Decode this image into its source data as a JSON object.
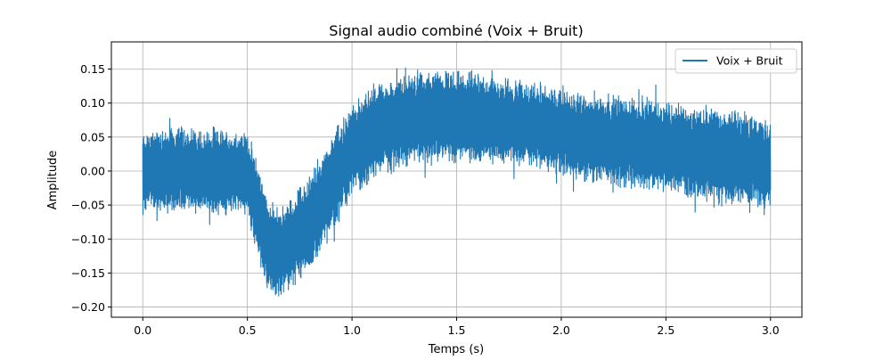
{
  "chart_data": {
    "type": "line",
    "title": "Signal audio combiné (Voix + Bruit)",
    "xlabel": "Temps (s)",
    "ylabel": "Amplitude",
    "xlim": [
      -0.15,
      3.15
    ],
    "ylim": [
      -0.215,
      0.19
    ],
    "xticks": [
      0.0,
      0.5,
      1.0,
      1.5,
      2.0,
      2.5,
      3.0
    ],
    "xtick_labels": [
      "0.0",
      "0.5",
      "1.0",
      "1.5",
      "2.0",
      "2.5",
      "3.0"
    ],
    "yticks": [
      -0.2,
      -0.15,
      -0.1,
      -0.05,
      0.0,
      0.05,
      0.1,
      0.15
    ],
    "ytick_labels": [
      "−0.20",
      "−0.15",
      "−0.10",
      "−0.05",
      "0.00",
      "0.05",
      "0.10",
      "0.15"
    ],
    "grid": true,
    "legend_position": "top-right",
    "series": [
      {
        "name": "Voix + Bruit",
        "color": "#1f77b4",
        "envelope": {
          "x": [
            0.0,
            0.1,
            0.2,
            0.3,
            0.4,
            0.5,
            0.55,
            0.6,
            0.65,
            0.7,
            0.8,
            0.9,
            1.0,
            1.1,
            1.2,
            1.3,
            1.4,
            1.5,
            1.6,
            1.7,
            1.8,
            1.9,
            2.0,
            2.1,
            2.2,
            2.3,
            2.4,
            2.5,
            2.6,
            2.7,
            2.8,
            2.9,
            3.0
          ],
          "upper": [
            0.06,
            0.07,
            0.07,
            0.065,
            0.065,
            0.06,
            0.02,
            -0.04,
            -0.05,
            -0.04,
            0.0,
            0.06,
            0.1,
            0.13,
            0.14,
            0.15,
            0.155,
            0.15,
            0.15,
            0.14,
            0.14,
            0.13,
            0.125,
            0.12,
            0.12,
            0.115,
            0.11,
            0.11,
            0.1,
            0.1,
            0.095,
            0.09,
            0.08
          ],
          "lower": [
            -0.06,
            -0.065,
            -0.065,
            -0.065,
            -0.07,
            -0.07,
            -0.13,
            -0.19,
            -0.19,
            -0.18,
            -0.15,
            -0.1,
            -0.04,
            -0.02,
            0.0,
            0.005,
            0.01,
            0.01,
            0.005,
            0.005,
            0.0,
            0.0,
            -0.01,
            -0.02,
            -0.025,
            -0.03,
            -0.035,
            -0.04,
            -0.045,
            -0.05,
            -0.055,
            -0.06,
            -0.06
          ]
        }
      }
    ]
  }
}
